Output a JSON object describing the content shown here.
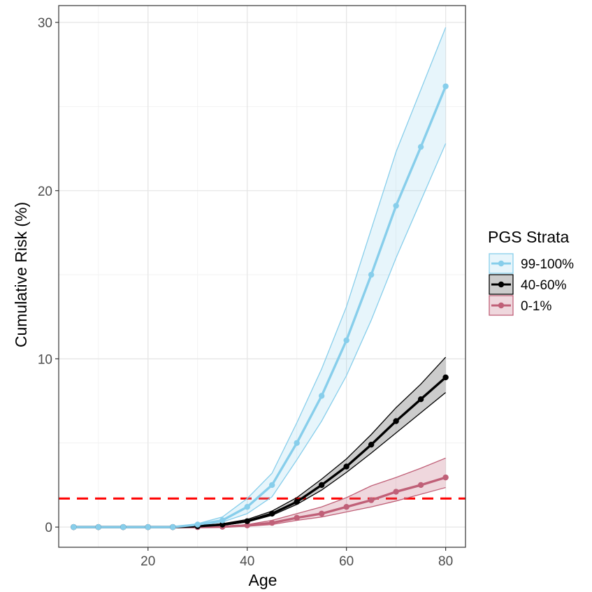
{
  "chart_data": {
    "type": "line",
    "xlabel": "Age",
    "ylabel": "Cumulative Risk (%)",
    "xlim": [
      2,
      84
    ],
    "ylim": [
      -1.2,
      31
    ],
    "x_ticks": [
      20,
      40,
      60,
      80
    ],
    "y_ticks": [
      0,
      10,
      20,
      30
    ],
    "grid": true,
    "legend": {
      "title": "PGS Strata",
      "placement": "right",
      "entries": [
        "99-100%",
        "40-60%",
        "0-1%"
      ]
    },
    "x": [
      5,
      10,
      15,
      20,
      25,
      30,
      35,
      40,
      45,
      50,
      55,
      60,
      65,
      70,
      75,
      80
    ],
    "series": [
      {
        "name": "99-100%",
        "color": "#87ceeb",
        "values": [
          0,
          0,
          0,
          0,
          0,
          0.15,
          0.4,
          1.2,
          2.5,
          5.0,
          7.8,
          11.1,
          15.0,
          19.1,
          22.6,
          26.2
        ],
        "lower": [
          0,
          0,
          0,
          0,
          0,
          0.1,
          0.3,
          0.8,
          1.8,
          4.0,
          6.3,
          9.0,
          12.3,
          16.0,
          19.4,
          22.8
        ],
        "upper": [
          0,
          0,
          0,
          0,
          0,
          0.2,
          0.6,
          1.7,
          3.2,
          6.2,
          9.4,
          13.1,
          17.7,
          22.3,
          26.0,
          29.7
        ]
      },
      {
        "name": "40-60%",
        "color": "#000000",
        "values": [
          0,
          0,
          0,
          0,
          0,
          0.05,
          0.15,
          0.35,
          0.8,
          1.5,
          2.5,
          3.6,
          4.9,
          6.3,
          7.6,
          8.9
        ],
        "lower": [
          0,
          0,
          0,
          0,
          0,
          0.03,
          0.1,
          0.3,
          0.7,
          1.35,
          2.2,
          3.25,
          4.4,
          5.6,
          6.8,
          8.0
        ],
        "upper": [
          0,
          0,
          0,
          0,
          0,
          0.07,
          0.2,
          0.45,
          0.95,
          1.75,
          2.85,
          4.05,
          5.5,
          7.1,
          8.5,
          10.1
        ]
      },
      {
        "name": "0-1%",
        "color": "#c06078",
        "values": [
          0,
          0,
          0,
          0,
          0,
          0,
          0.02,
          0.1,
          0.25,
          0.55,
          0.8,
          1.2,
          1.6,
          2.1,
          2.5,
          2.95
        ],
        "lower": [
          0,
          0,
          0,
          0,
          0,
          0,
          0.01,
          0.05,
          0.15,
          0.4,
          0.6,
          0.9,
          1.2,
          1.55,
          1.95,
          2.35
        ],
        "upper": [
          0,
          0,
          0,
          0,
          0,
          0,
          0.04,
          0.15,
          0.4,
          0.8,
          1.2,
          1.75,
          2.45,
          2.95,
          3.5,
          4.1
        ]
      }
    ],
    "reference_line": {
      "y": 1.7,
      "color": "#ff0000",
      "style": "dashed"
    }
  }
}
